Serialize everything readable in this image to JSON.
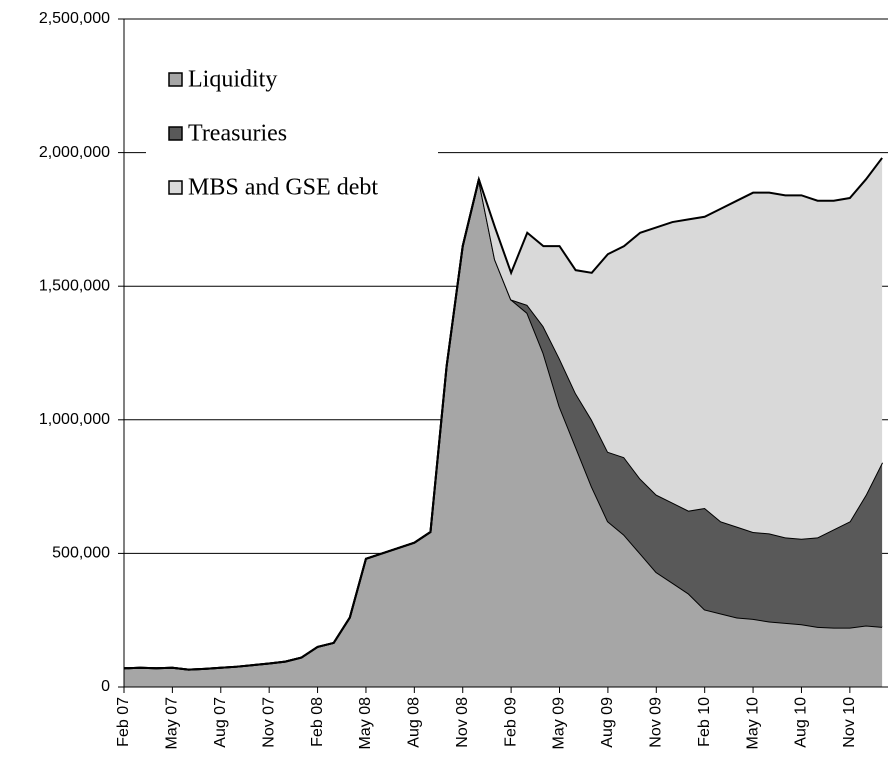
{
  "chart_data": {
    "type": "stacked_area",
    "categories": [
      "Feb 07",
      null,
      null,
      "May 07",
      null,
      null,
      "Aug 07",
      null,
      null,
      "Nov 07",
      null,
      null,
      "Feb 08",
      null,
      null,
      "May 08",
      null,
      null,
      "Aug 08",
      null,
      null,
      "Nov 08",
      null,
      null,
      "Feb 09",
      null,
      null,
      "May 09",
      null,
      null,
      "Aug 09",
      null,
      null,
      "Nov 09",
      null,
      null,
      "Feb 10",
      null,
      null,
      "May 10",
      null,
      null,
      "Aug 10",
      null,
      null,
      "Nov 10",
      null,
      null
    ],
    "series": [
      {
        "name": "Liquidity",
        "color": "#a6a6a6",
        "values": [
          70000,
          72000,
          70000,
          72000,
          65000,
          68000,
          72000,
          76000,
          82000,
          88000,
          95000,
          110000,
          150000,
          165000,
          260000,
          480000,
          500000,
          520000,
          540000,
          580000,
          1200000,
          1650000,
          1900000,
          1600000,
          1450000,
          1400000,
          1250000,
          1050000,
          900000,
          750000,
          620000,
          570000,
          500000,
          430000,
          390000,
          350000,
          290000,
          275000,
          260000,
          255000,
          245000,
          240000,
          235000,
          225000,
          222000,
          222000,
          230000,
          225000
        ]
      },
      {
        "name": "Treasuries",
        "color": "#595959",
        "values": [
          0,
          0,
          0,
          0,
          0,
          0,
          0,
          0,
          0,
          0,
          0,
          0,
          0,
          0,
          0,
          0,
          0,
          0,
          0,
          0,
          0,
          0,
          0,
          0,
          0,
          30000,
          100000,
          180000,
          200000,
          250000,
          260000,
          290000,
          280000,
          290000,
          300000,
          310000,
          380000,
          345000,
          340000,
          325000,
          330000,
          320000,
          320000,
          335000,
          368000,
          398000,
          490000,
          615000
        ]
      },
      {
        "name": "MBS and GSE debt",
        "color": "#d9d9d9",
        "values": [
          0,
          0,
          0,
          0,
          0,
          0,
          0,
          0,
          0,
          0,
          0,
          0,
          0,
          0,
          0,
          0,
          0,
          0,
          0,
          0,
          0,
          0,
          0,
          120000,
          100000,
          270000,
          300000,
          420000,
          460000,
          550000,
          740000,
          790000,
          920000,
          1000000,
          1050000,
          1090000,
          1090000,
          1170000,
          1220000,
          1270000,
          1275000,
          1280000,
          1285000,
          1260000,
          1230000,
          1210000,
          1180000,
          1140000
        ]
      }
    ],
    "ylim": [
      0,
      2500000
    ],
    "yticks": [
      0,
      {
        "value": 500000,
        "label": "500,000"
      },
      {
        "value": 1000000,
        "label": "1,000,000"
      },
      {
        "value": 1500000,
        "label": "1,500,000"
      },
      {
        "value": 2000000,
        "label": "2,000,000"
      },
      {
        "value": 2500000,
        "label": "2,500,000"
      }
    ],
    "grid": true,
    "legend": "upper-left"
  }
}
